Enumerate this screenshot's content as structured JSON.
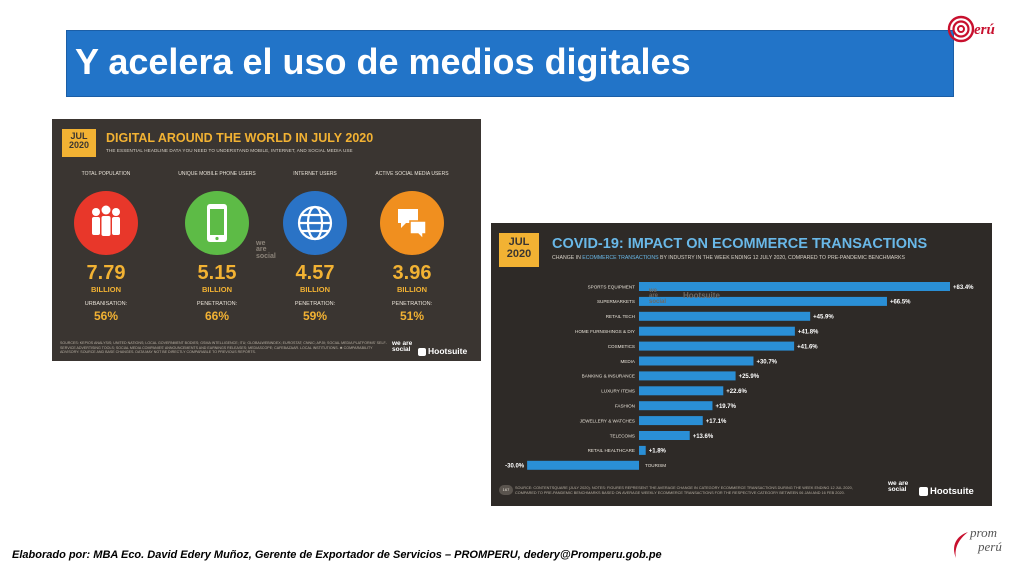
{
  "slide": {
    "title": "Y acelera el uso de medios digitales",
    "footer": "Elaborado por: MBA Eco. David Edery Muñoz, Gerente de Exportador de Servicios – PROMPERU, dedery@Promperu.gob.pe",
    "logo_top_text": "erú",
    "logo_bottom_line1": "prom",
    "logo_bottom_line2": "perú"
  },
  "colors": {
    "title_bg": "#2274c8",
    "gold": "#f2b233",
    "blue_light": "#69b8e8",
    "red": "#e8372a",
    "green": "#5dbb46",
    "blue": "#2a73c6",
    "orange": "#f08f1f"
  },
  "digital": {
    "badge_line1": "JUL",
    "badge_line2": "2020",
    "title": "DIGITAL AROUND THE WORLD IN JULY 2020",
    "subtitle": "THE ESSENTIAL HEADLINE DATA YOU NEED TO UNDERSTAND MOBILE, INTERNET, AND SOCIAL MEDIA USE",
    "stats": [
      {
        "label": "TOTAL POPULATION",
        "value": "7.79",
        "unit": "BILLION",
        "sub_label": "URBANISATION:",
        "sub_value": "56%",
        "icon": "people-icon"
      },
      {
        "label": "UNIQUE MOBILE PHONE USERS",
        "value": "5.15",
        "unit": "BILLION",
        "sub_label": "PENETRATION:",
        "sub_value": "66%",
        "icon": "mobile-phone-icon"
      },
      {
        "label": "INTERNET USERS",
        "value": "4.57",
        "unit": "BILLION",
        "sub_label": "PENETRATION:",
        "sub_value": "59%",
        "icon": "globe-icon"
      },
      {
        "label": "ACTIVE SOCIAL MEDIA USERS",
        "value": "3.96",
        "unit": "BILLION",
        "sub_label": "PENETRATION:",
        "sub_value": "51%",
        "icon": "chat-bubbles-icon"
      }
    ],
    "watermark": "we are social",
    "source_text": "SOURCES: KEPIOS ANALYSIS; UNITED NATIONS; LOCAL GOVERNMENT BODIES; GSMA INTELLIGENCE; ITU; GLOBALWEBINDEX; EUROSTAT; CNNIC; APJII; SOCIAL MEDIA PLATFORMS' SELF-SERVICE ADVERTISING TOOLS; SOCIAL MEDIA COMPANIES' ANNOUNCEMENTS AND EARNINGS RELEASES; MEDIASCOPE; CAFEBAZAAR. LOCAL INSTITUTIONS. ✱ COMPARABILITY ADVISORY: SOURCE AND BASE CHANGES. DATA MAY NOT BE DIRECTLY COMPARABLE TO PREVIOUS REPORTS.",
    "brand_we_are_social": "we are social",
    "brand_hootsuite": "Hootsuite"
  },
  "ecommerce": {
    "badge_line1": "JUL",
    "badge_line2": "2020",
    "title": "COVID-19: IMPACT ON ECOMMERCE TRANSACTIONS",
    "subtitle_pre": "CHANGE IN ",
    "subtitle_highlight": "ECOMMERCE TRANSACTIONS",
    "subtitle_post": " BY INDUSTRY IN THE WEEK ENDING 12 JULY 2020, COMPARED TO PRE-PANDEMIC BENCHMARKS",
    "source_text": "SOURCE: CONTENTSQUARE (JULY 2020). NOTES: FIGURES REPRESENT THE AVERAGE CHANGE IN CATEGORY ECOMMERCE TRANSACTIONS DURING THE WEEK ENDING 12 JUL 2020, COMPARED TO PRE-PANDEMIC BENCHMARKS BASED ON AVERAGE WEEKLY ECOMMERCE TRANSACTIONS FOR THE RESPECTIVE CATEGORY BETWEEN 06 JAN AND 16 FEB 2020.",
    "page_number": "167",
    "brand_we_are_social": "we are social",
    "brand_hootsuite": "Hootsuite",
    "watermark_left": "we are social",
    "watermark_right": "Hootsuite"
  },
  "chart_data": {
    "type": "bar",
    "orientation": "horizontal",
    "title": "COVID-19: IMPACT ON ECOMMERCE TRANSACTIONS",
    "categories": [
      "SPORTS EQUIPMENT",
      "SUPERMARKETS",
      "RETAIL TECH",
      "HOME FURNISHINGS & DIY",
      "COSMETICS",
      "MEDIA",
      "BANKING & INSURANCE",
      "LUXURY ITEMS",
      "FASHION",
      "JEWELLERY & WATCHES",
      "TELECOMS",
      "RETAIL HEALTHCARE",
      "TOURISM"
    ],
    "values": [
      83.4,
      66.5,
      45.9,
      41.8,
      41.6,
      30.7,
      25.9,
      22.6,
      19.7,
      17.1,
      13.6,
      1.8,
      -30.0
    ],
    "value_labels": [
      "+83.4%",
      "+66.5%",
      "+45.9%",
      "+41.8%",
      "+41.6%",
      "+30.7%",
      "+25.9%",
      "+22.6%",
      "+19.7%",
      "+17.1%",
      "+13.6%",
      "+1.8%",
      "-30.0%"
    ],
    "bar_color": "#2a8fd6",
    "xlim": [
      -30,
      83.4
    ]
  }
}
